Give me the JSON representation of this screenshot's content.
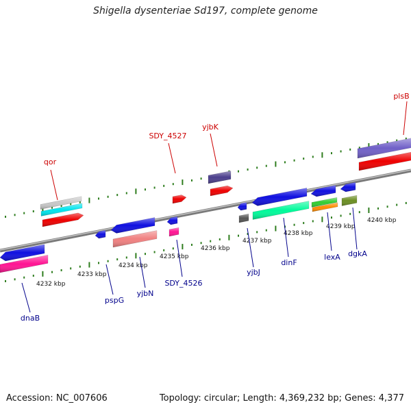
{
  "title": "Shigella dysenteriae Sd197, complete genome",
  "footer": {
    "accession": "Accession: NC_007606",
    "summary": "Topology: circular; Length: 4,369,232 bp; Genes: 4,377"
  },
  "colors": {
    "backbone": "#888888",
    "tick_mark": "#2e7d1e",
    "label_top": "#cc0000",
    "label_bottom": "#00008b"
  },
  "scale_labels": [
    "4232 kbp",
    "4233 kbp",
    "4234 kbp",
    "4235 kbp",
    "4236 kbp",
    "4237 kbp",
    "4238 kbp",
    "4239 kbp",
    "4240 kbp"
  ],
  "genes_top": [
    {
      "name": "qor",
      "color": "#cc0000"
    },
    {
      "name": "SDY_4527",
      "color": "#cc0000"
    },
    {
      "name": "yjbK",
      "color": "#cc0000"
    },
    {
      "name": "plsB",
      "color": "#cc0000"
    }
  ],
  "genes_bottom": [
    {
      "name": "dnaB",
      "color": "#00008b"
    },
    {
      "name": "pspG",
      "color": "#00008b"
    },
    {
      "name": "yjbN",
      "color": "#00008b"
    },
    {
      "name": "SDY_4526",
      "color": "#00008b"
    },
    {
      "name": "yjbJ",
      "color": "#00008b"
    },
    {
      "name": "dinF",
      "color": "#00008b"
    },
    {
      "name": "lexA",
      "color": "#00008b"
    },
    {
      "name": "dgkA",
      "color": "#00008b"
    }
  ]
}
